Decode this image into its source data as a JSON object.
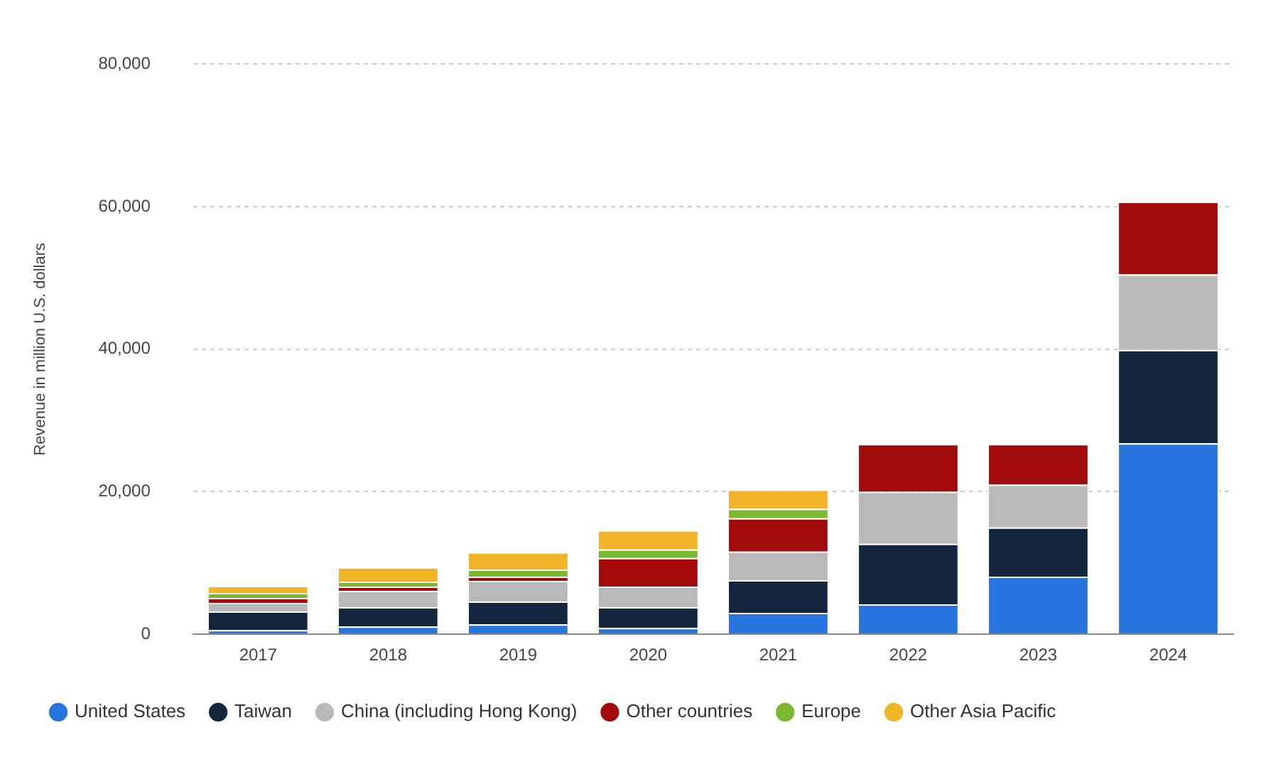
{
  "chart_data": {
    "type": "bar",
    "stacked": true,
    "ylabel": "Revenue in million U.S. dollars",
    "categories": [
      "2017",
      "2018",
      "2019",
      "2020",
      "2021",
      "2022",
      "2023",
      "2024"
    ],
    "series": [
      {
        "name": "United States",
        "color": "#2876dd",
        "values": [
          600,
          1100,
          1400,
          900,
          3000,
          4200,
          8100,
          26800
        ]
      },
      {
        "name": "Taiwan",
        "color": "#14263d",
        "values": [
          2600,
          2700,
          3200,
          2900,
          4600,
          8500,
          6900,
          13100
        ]
      },
      {
        "name": "China (including Hong Kong)",
        "color": "#b9b9b9",
        "values": [
          1200,
          2300,
          2900,
          2900,
          4000,
          7300,
          6000,
          10600
        ]
      },
      {
        "name": "Other countries",
        "color": "#a10a0a",
        "values": [
          700,
          600,
          600,
          4000,
          4700,
          6700,
          5700,
          10200
        ]
      },
      {
        "name": "Europe",
        "color": "#7cb82f",
        "values": [
          700,
          700,
          1000,
          1200,
          1300,
          null,
          null,
          null
        ]
      },
      {
        "name": "Other Asia Pacific",
        "color": "#f0b429",
        "values": [
          1000,
          2000,
          2400,
          2700,
          2700,
          null,
          null,
          null
        ]
      }
    ],
    "ylim": [
      0,
      80000
    ],
    "yticks": [
      0,
      {
        "value": 20000,
        "label": "20,000"
      },
      {
        "value": 40000,
        "label": "40,000"
      },
      {
        "value": 60000,
        "label": "60,000"
      },
      {
        "value": 80000,
        "label": "80,000"
      }
    ],
    "grid": "y",
    "legend": "bottom"
  }
}
